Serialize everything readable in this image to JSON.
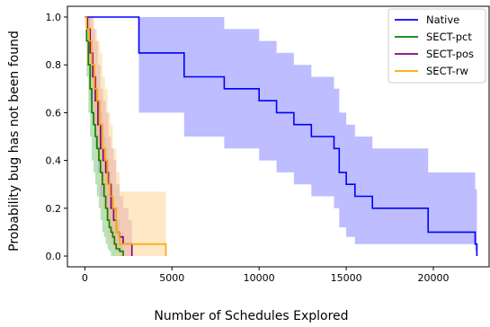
{
  "chart_data": {
    "type": "line",
    "xlabel": "Number of Schedules Explored",
    "ylabel": "Probability bug has not been found",
    "xlim": [
      -1000,
      23200
    ],
    "ylim": [
      -0.045,
      1.045
    ],
    "xticks": [
      0,
      5000,
      10000,
      15000,
      20000
    ],
    "xtick_labels": [
      "0",
      "5000",
      "10000",
      "15000",
      "20000"
    ],
    "yticks": [
      0.0,
      0.2,
      0.4,
      0.6,
      0.8,
      1.0
    ],
    "ytick_labels": [
      "0.0",
      "0.2",
      "0.4",
      "0.6",
      "0.8",
      "1.0"
    ],
    "grid": false,
    "legend_position": "top-right",
    "series": [
      {
        "name": "Native",
        "color": "#0000ff",
        "band_color": "#7b7bff",
        "x": [
          0,
          3100,
          3100,
          5500,
          5700,
          8000,
          10000,
          11000,
          12000,
          13000,
          14300,
          14600,
          15000,
          15500,
          16500,
          19700,
          22400,
          22500
        ],
        "y": [
          1.0,
          1.0,
          0.85,
          0.85,
          0.75,
          0.7,
          0.65,
          0.6,
          0.55,
          0.5,
          0.45,
          0.35,
          0.3,
          0.25,
          0.2,
          0.1,
          0.05,
          0.0
        ],
        "upper": [
          1.0,
          1.0,
          1.0,
          1.0,
          1.0,
          0.95,
          0.9,
          0.85,
          0.8,
          0.75,
          0.7,
          0.6,
          0.55,
          0.5,
          0.45,
          0.35,
          0.28,
          0.2
        ],
        "lower": [
          1.0,
          1.0,
          0.6,
          0.6,
          0.5,
          0.45,
          0.4,
          0.35,
          0.3,
          0.25,
          0.2,
          0.12,
          0.08,
          0.05,
          0.05,
          0.05,
          0.02,
          0.0
        ]
      },
      {
        "name": "SECT-pct",
        "color": "#008000",
        "band_color": "#6fc76f",
        "x": [
          0,
          100,
          200,
          300,
          400,
          500,
          600,
          700,
          800,
          900,
          1000,
          1100,
          1200,
          1300,
          1400,
          1500,
          1600,
          1700,
          1800,
          2000,
          2200
        ],
        "y": [
          1.0,
          0.9,
          0.8,
          0.7,
          0.6,
          0.55,
          0.5,
          0.45,
          0.4,
          0.35,
          0.3,
          0.25,
          0.2,
          0.15,
          0.12,
          0.1,
          0.08,
          0.05,
          0.03,
          0.02,
          0.0
        ],
        "upper": [
          1.0,
          1.0,
          1.0,
          0.95,
          0.85,
          0.8,
          0.75,
          0.7,
          0.65,
          0.6,
          0.55,
          0.5,
          0.45,
          0.4,
          0.35,
          0.3,
          0.25,
          0.2,
          0.15,
          0.1,
          0.05
        ],
        "lower": [
          1.0,
          0.75,
          0.6,
          0.5,
          0.4,
          0.35,
          0.3,
          0.25,
          0.2,
          0.15,
          0.1,
          0.08,
          0.05,
          0.03,
          0.02,
          0.0,
          0.0,
          0.0,
          0.0,
          0.0,
          0.0
        ]
      },
      {
        "name": "SECT-pos",
        "color": "#800080",
        "band_color": "#c88cc8",
        "x": [
          0,
          150,
          300,
          450,
          600,
          750,
          900,
          1050,
          1200,
          1350,
          1500,
          1650,
          1800,
          2000,
          2200,
          2500,
          2700
        ],
        "y": [
          1.0,
          0.95,
          0.85,
          0.75,
          0.65,
          0.55,
          0.45,
          0.4,
          0.35,
          0.3,
          0.2,
          0.15,
          0.1,
          0.08,
          0.05,
          0.05,
          0.0
        ],
        "upper": [
          1.0,
          1.0,
          1.0,
          0.95,
          0.9,
          0.8,
          0.7,
          0.65,
          0.6,
          0.5,
          0.45,
          0.4,
          0.3,
          0.25,
          0.2,
          0.15,
          0.1
        ],
        "lower": [
          1.0,
          0.8,
          0.65,
          0.55,
          0.45,
          0.35,
          0.25,
          0.2,
          0.15,
          0.1,
          0.05,
          0.03,
          0.02,
          0.0,
          0.0,
          0.0,
          0.0
        ]
      },
      {
        "name": "SECT-rw",
        "color": "#ffa500",
        "band_color": "#ffd28c",
        "x": [
          0,
          100,
          250,
          400,
          550,
          700,
          850,
          1000,
          1150,
          1300,
          1450,
          1600,
          1800,
          2000,
          2400,
          4650
        ],
        "y": [
          1.0,
          0.95,
          0.9,
          0.8,
          0.7,
          0.65,
          0.55,
          0.45,
          0.4,
          0.3,
          0.25,
          0.2,
          0.1,
          0.05,
          0.05,
          0.0
        ],
        "upper": [
          1.0,
          1.0,
          1.0,
          1.0,
          0.95,
          0.9,
          0.85,
          0.75,
          0.7,
          0.6,
          0.55,
          0.45,
          0.35,
          0.27,
          0.27,
          0.27
        ],
        "lower": [
          1.0,
          0.8,
          0.7,
          0.6,
          0.5,
          0.4,
          0.3,
          0.2,
          0.15,
          0.1,
          0.05,
          0.03,
          0.0,
          0.0,
          0.0,
          0.0
        ]
      }
    ]
  }
}
